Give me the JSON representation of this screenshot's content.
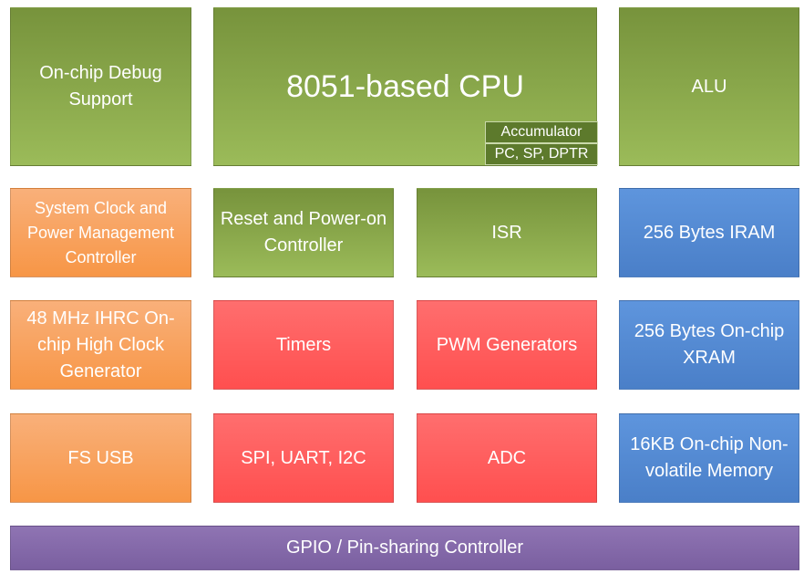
{
  "blocks": [
    {
      "label": "On-chip Debug Support"
    },
    {
      "label": "8051-based CPU",
      "registers": [
        "Accumulator",
        "PC, SP, DPTR"
      ]
    },
    {
      "label": "ALU"
    },
    {
      "label": "System Clock and Power Management Controller"
    },
    {
      "label": "Reset and Power-on Controller"
    },
    {
      "label": "ISR"
    },
    {
      "label": "256 Bytes IRAM"
    },
    {
      "label": "48 MHz IHRC On-chip High Clock Generator"
    },
    {
      "label": "Timers"
    },
    {
      "label": "PWM Generators"
    },
    {
      "label": "256 Bytes On-chip XRAM"
    },
    {
      "label": "FS USB"
    },
    {
      "label": "SPI, UART, I2C"
    },
    {
      "label": "ADC"
    },
    {
      "label": "16KB On-chip Non-volatile Memory"
    },
    {
      "label": "GPIO / Pin-sharing Controller"
    }
  ]
}
